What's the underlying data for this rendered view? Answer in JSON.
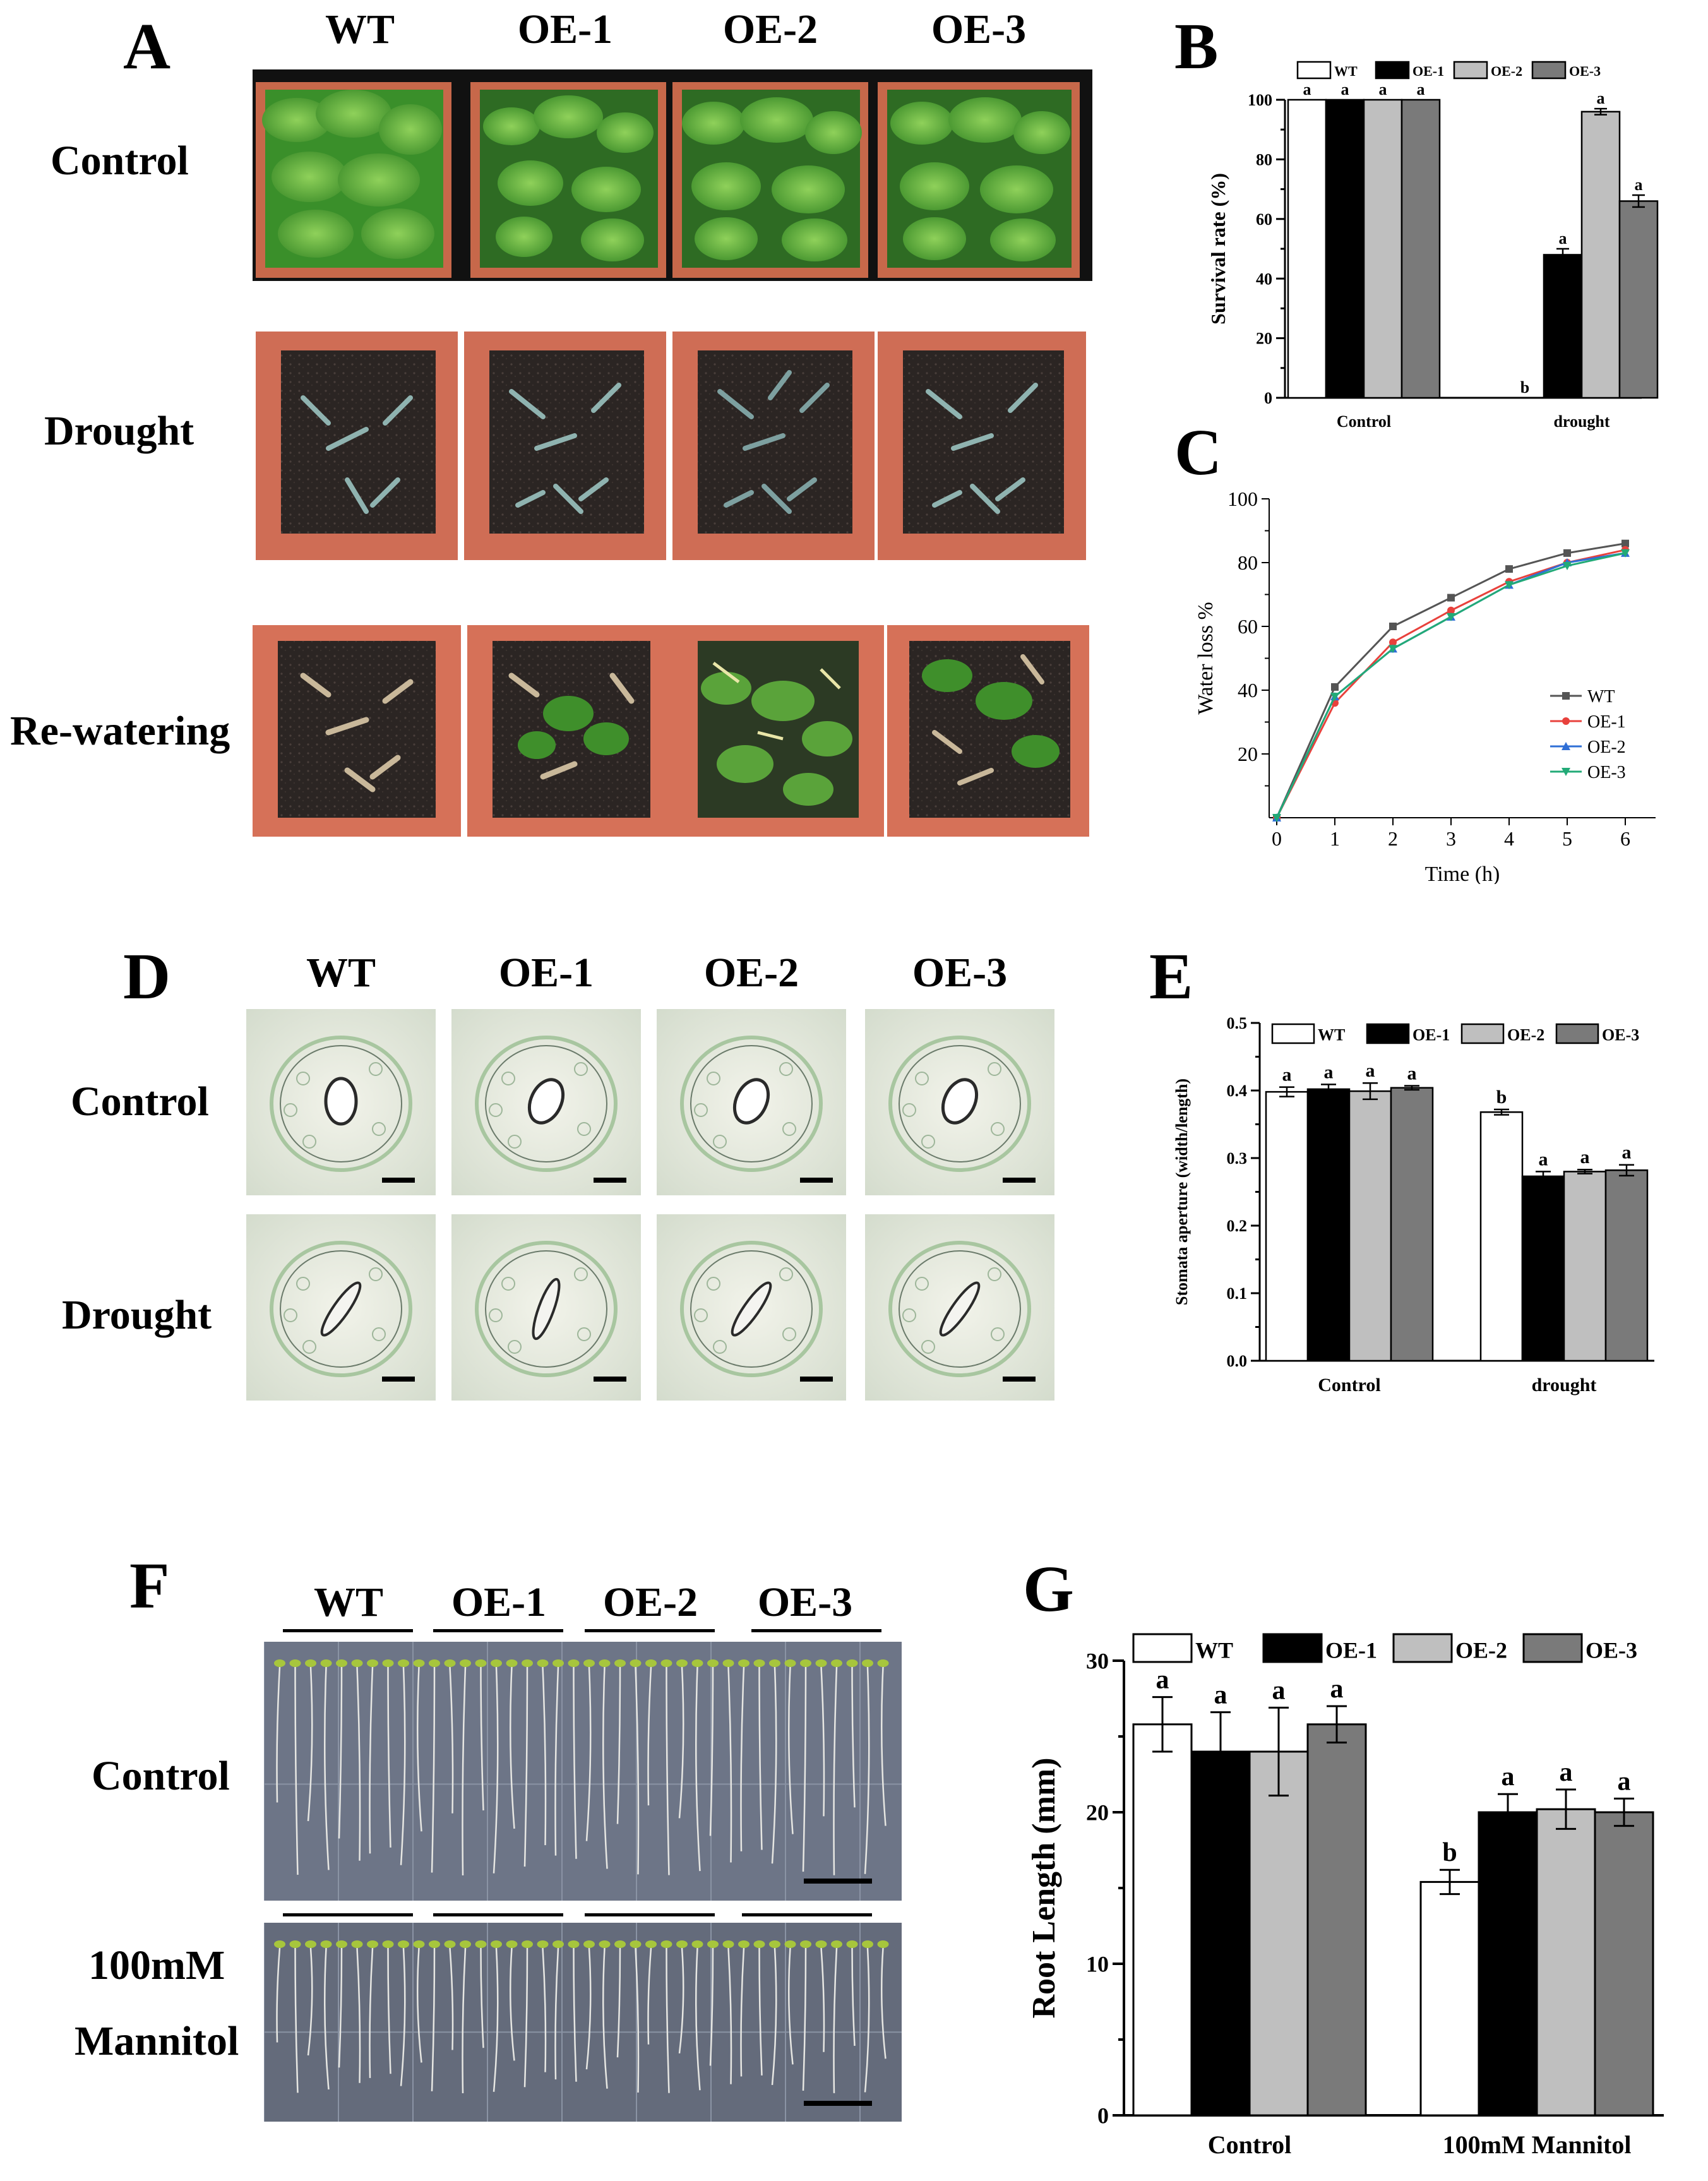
{
  "panelA": {
    "letter": "A",
    "columns": [
      "WT",
      "OE-1",
      "OE-2",
      "OE-3"
    ],
    "rows": [
      "Control",
      "Drought",
      "Re-watering"
    ]
  },
  "panelD": {
    "letter": "D",
    "columns": [
      "WT",
      "OE-1",
      "OE-2",
      "OE-3"
    ],
    "rows": [
      "Control",
      "Drought"
    ]
  },
  "panelF": {
    "letter": "F",
    "columns": [
      "WT",
      "OE-1",
      "OE-2",
      "OE-3"
    ],
    "row1": "Control",
    "row2_line1": "100mM",
    "row2_line2": "Mannitol"
  },
  "colors": {
    "WT": "#ffffff",
    "OE-1": "#000000",
    "OE-2": "#bfbfbf",
    "OE-3": "#7a7a7a"
  },
  "chart_data": [
    {
      "panel": "B",
      "type": "bar",
      "ylabel": "Survival rate (%)",
      "ylim": [
        0,
        100
      ],
      "yticks": [
        0,
        20,
        40,
        60,
        80,
        100
      ],
      "categories": [
        "Control",
        "drought"
      ],
      "legend": "top",
      "series": [
        {
          "name": "WT",
          "values": [
            100,
            0
          ],
          "errors": [
            0,
            0
          ],
          "sig": [
            "a",
            "b"
          ]
        },
        {
          "name": "OE-1",
          "values": [
            100,
            48
          ],
          "errors": [
            0,
            2
          ],
          "sig": [
            "a",
            "a"
          ]
        },
        {
          "name": "OE-2",
          "values": [
            100,
            96
          ],
          "errors": [
            0,
            1
          ],
          "sig": [
            "a",
            "a"
          ]
        },
        {
          "name": "OE-3",
          "values": [
            100,
            66
          ],
          "errors": [
            0,
            2
          ],
          "sig": [
            "a",
            "a"
          ]
        }
      ]
    },
    {
      "panel": "C",
      "type": "line",
      "xlabel": "Time (h)",
      "ylabel": "Water loss %",
      "xlim": [
        0,
        6
      ],
      "ylim": [
        0,
        100
      ],
      "xticks": [
        0,
        1,
        2,
        3,
        4,
        5,
        6
      ],
      "yticks": [
        20,
        40,
        60,
        80,
        100
      ],
      "x": [
        0,
        1,
        2,
        3,
        4,
        5,
        6
      ],
      "legend": "bottom-right",
      "series": [
        {
          "name": "WT",
          "color": "#555555",
          "marker": "square",
          "values": [
            0,
            41,
            60,
            69,
            78,
            83,
            86
          ]
        },
        {
          "name": "OE-1",
          "color": "#e8413c",
          "marker": "circle",
          "values": [
            0,
            36,
            55,
            65,
            74,
            80,
            84
          ]
        },
        {
          "name": "OE-2",
          "color": "#2f6fd6",
          "marker": "triangle",
          "values": [
            0,
            38,
            53,
            63,
            73,
            80,
            83
          ]
        },
        {
          "name": "OE-3",
          "color": "#22aa77",
          "marker": "triangle-down",
          "values": [
            0,
            38,
            53,
            63,
            73,
            79,
            83
          ]
        }
      ]
    },
    {
      "panel": "E",
      "type": "bar",
      "ylabel": "Stomata  aperture (width/length)",
      "ylim": [
        0,
        0.5
      ],
      "yticks": [
        0.0,
        0.1,
        0.2,
        0.3,
        0.4,
        0.5
      ],
      "ytick_labels": [
        "0.0",
        "0.1",
        "0.2",
        "0.3",
        "0.4",
        "0.5"
      ],
      "categories": [
        "Control",
        "drought"
      ],
      "legend": "top",
      "series": [
        {
          "name": "WT",
          "values": [
            0.398,
            0.368
          ],
          "errors": [
            0.007,
            0.004
          ],
          "sig": [
            "a",
            "b"
          ]
        },
        {
          "name": "OE-1",
          "values": [
            0.402,
            0.273
          ],
          "errors": [
            0.007,
            0.007
          ],
          "sig": [
            "a",
            "a"
          ]
        },
        {
          "name": "OE-2",
          "values": [
            0.399,
            0.28
          ],
          "errors": [
            0.012,
            0.003
          ],
          "sig": [
            "a",
            "a"
          ]
        },
        {
          "name": "OE-3",
          "values": [
            0.404,
            0.282
          ],
          "errors": [
            0.003,
            0.008
          ],
          "sig": [
            "a",
            "a"
          ]
        }
      ]
    },
    {
      "panel": "G",
      "type": "bar",
      "ylabel": "Root Length (mm)",
      "ylim": [
        0,
        30
      ],
      "yticks": [
        0,
        10,
        20,
        30
      ],
      "categories": [
        "Control",
        "100mM Mannitol"
      ],
      "legend": "top",
      "series": [
        {
          "name": "WT",
          "values": [
            25.8,
            15.4
          ],
          "errors": [
            1.8,
            0.8
          ],
          "sig": [
            "a",
            "b"
          ]
        },
        {
          "name": "OE-1",
          "values": [
            24.0,
            20.0
          ],
          "errors": [
            2.6,
            1.2
          ],
          "sig": [
            "a",
            "a"
          ]
        },
        {
          "name": "OE-2",
          "values": [
            24.0,
            20.2
          ],
          "errors": [
            2.9,
            1.3
          ],
          "sig": [
            "a",
            "a"
          ]
        },
        {
          "name": "OE-3",
          "values": [
            25.8,
            20.0
          ],
          "errors": [
            1.2,
            0.9
          ],
          "sig": [
            "a",
            "a"
          ]
        }
      ]
    }
  ]
}
